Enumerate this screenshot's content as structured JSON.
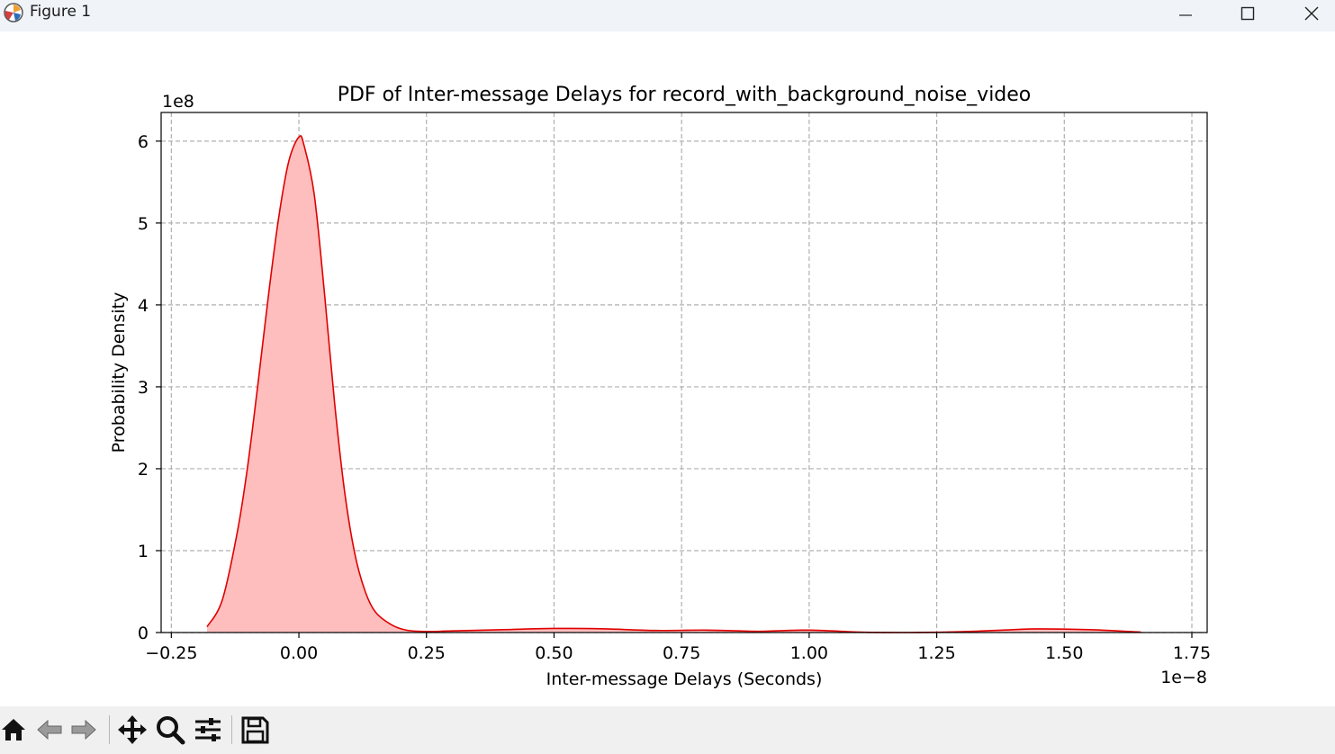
{
  "window": {
    "title": "Figure 1",
    "buttons": [
      "minimize",
      "maximize",
      "close"
    ]
  },
  "toolbar": {
    "tools": [
      "home-icon",
      "back-icon",
      "forward-icon",
      "pan-icon",
      "zoom-icon",
      "configure-subplots-icon",
      "save-icon"
    ]
  },
  "chart_data": {
    "type": "area",
    "title": "PDF of Inter-message Delays for record_with_background_noise_video",
    "xlabel": "Inter-message Delays (Seconds)",
    "ylabel": "Probability Density",
    "x_offset_label": "1e−8",
    "y_offset_label": "1e8",
    "xlim": [
      -2.7e-09,
      1.78e-08
    ],
    "ylim": [
      0,
      635000000.0
    ],
    "x_ticks": [
      -2.5e-09,
      0,
      2.5e-09,
      5e-09,
      7.5e-09,
      1e-08,
      1.25e-08,
      1.5e-08,
      1.75e-08
    ],
    "x_tick_labels": [
      "−0.25",
      "0.00",
      "0.25",
      "0.50",
      "0.75",
      "1.00",
      "1.25",
      "1.50",
      "1.75"
    ],
    "y_ticks": [
      0,
      100000000.0,
      200000000.0,
      300000000.0,
      400000000.0,
      500000000.0,
      600000000.0
    ],
    "y_tick_labels": [
      "0",
      "1",
      "2",
      "3",
      "4",
      "5",
      "6"
    ],
    "grid": true,
    "line_color": "#e00000",
    "fill_color": "#ffbebe",
    "series": [
      {
        "x": [
          -1.8e-09,
          -1.5e-09,
          -1.2e-09,
          -1e-09,
          -8e-10,
          -6e-10,
          -4e-10,
          -2e-10,
          0,
          1e-10,
          3e-10,
          5e-10,
          7e-10,
          9e-10,
          1.1e-09,
          1.3e-09,
          1.5e-09,
          1.8e-09,
          2.1e-09,
          2.5e-09,
          3e-09,
          4e-09,
          5e-09,
          6e-09,
          7e-09,
          8e-09,
          9e-09,
          1e-08,
          1.1e-08,
          1.2e-08,
          1.3e-08,
          1.4e-08,
          1.45e-08,
          1.55e-08,
          1.65e-08
        ],
        "y": [
          7000000.0,
          40000000.0,
          125000000.0,
          205000000.0,
          305000000.0,
          410000000.0,
          505000000.0,
          575000000.0,
          605000000.0,
          595000000.0,
          535000000.0,
          415000000.0,
          280000000.0,
          170000000.0,
          95000000.0,
          50000000.0,
          25000000.0,
          10000000.0,
          3000000.0,
          1200000.0,
          2000000.0,
          3500000.0,
          5000000.0,
          4500000.0,
          2500000.0,
          3000000.0,
          1500000.0,
          3000000.0,
          500000.0,
          0.0,
          1000000.0,
          3500000.0,
          4500000.0,
          3500000.0,
          500000.0
        ]
      }
    ]
  }
}
